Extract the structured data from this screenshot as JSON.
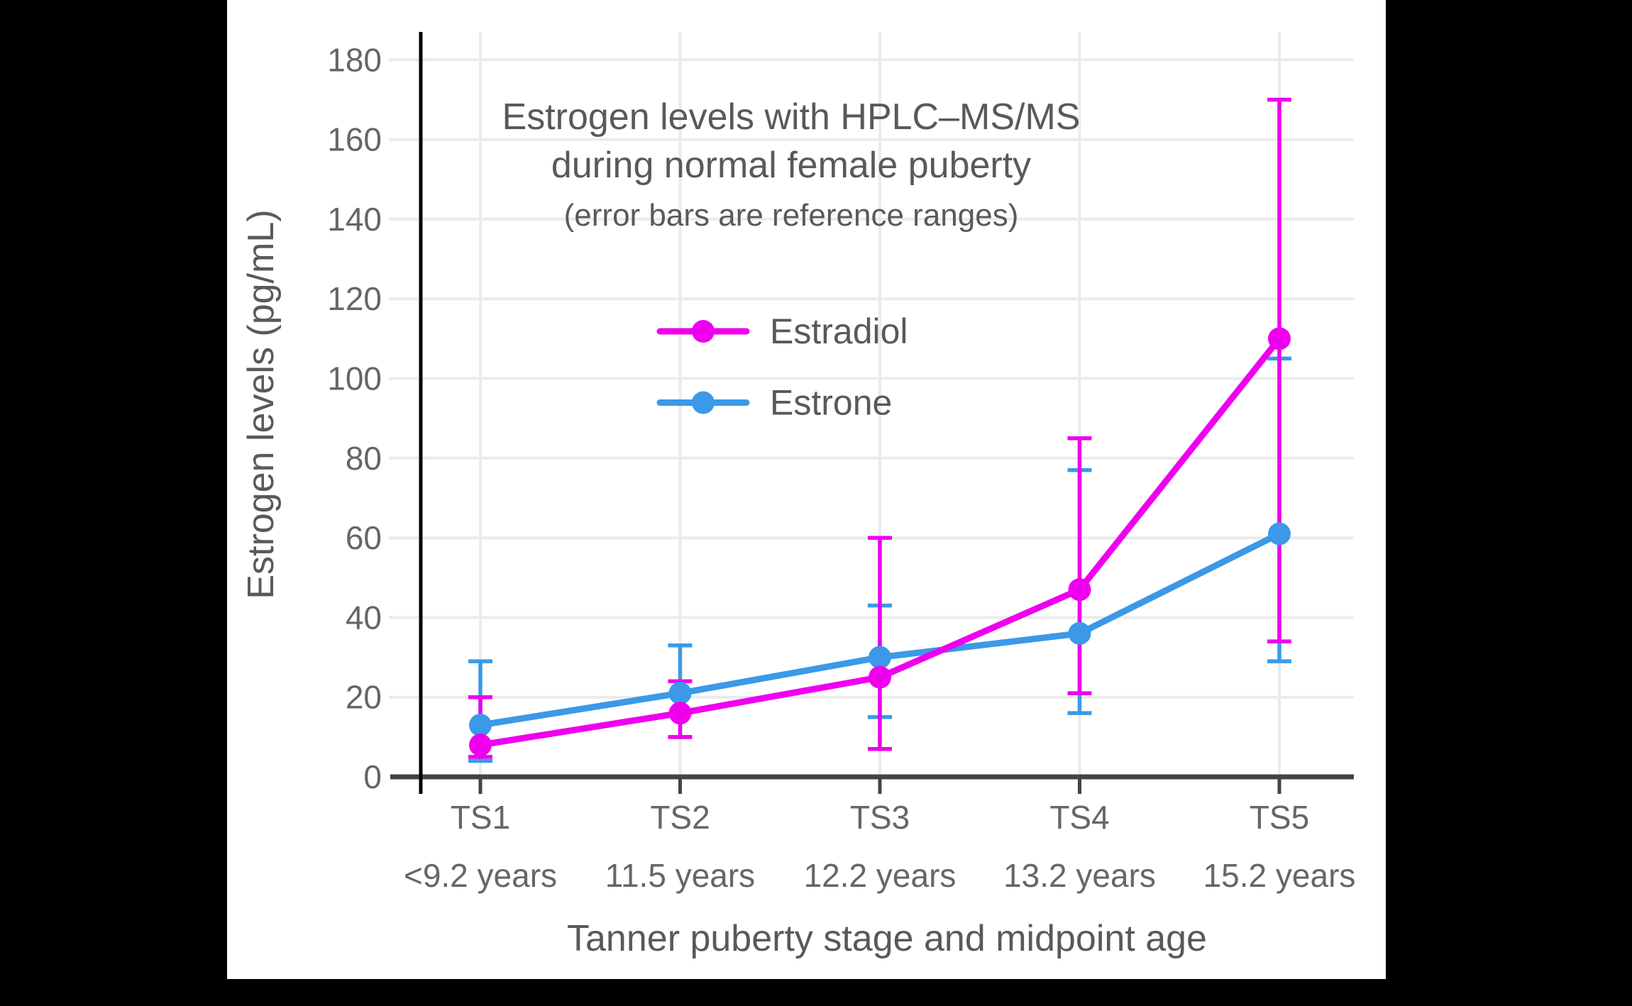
{
  "figure": {
    "background_color": "#000000",
    "panel_color": "#ffffff",
    "title_line1": "Estrogen levels with HPLC–MS/MS",
    "title_line2": "during normal female puberty",
    "subtitle": "(error bars are reference ranges)"
  },
  "chart_data": {
    "type": "line",
    "title": "Estrogen levels with HPLC–MS/MS during normal female puberty",
    "subtitle": "(error bars are reference ranges)",
    "xlabel": "Tanner puberty stage and midpoint age",
    "ylabel": "Estrogen levels (pg/mL)",
    "categories": [
      "TS1",
      "TS2",
      "TS3",
      "TS4",
      "TS5"
    ],
    "category_ages": [
      "<9.2 years",
      "11.5 years",
      "12.2 years",
      "13.2 years",
      "15.2 years"
    ],
    "yticks": [
      0,
      20,
      40,
      60,
      80,
      100,
      120,
      140,
      160,
      180
    ],
    "ylim": [
      0,
      187
    ],
    "grid": true,
    "legend_position": "inside upper-center",
    "series": [
      {
        "name": "Estradiol",
        "color": "#ee00ee",
        "values": [
          8,
          16,
          25,
          47,
          110
        ],
        "error_low": [
          5,
          10,
          7,
          21,
          34
        ],
        "error_high": [
          20,
          24,
          60,
          85,
          170
        ]
      },
      {
        "name": "Estrone",
        "color": "#3b99e8",
        "values": [
          13,
          21,
          30,
          36,
          61
        ],
        "error_low": [
          4,
          10,
          15,
          16,
          29
        ],
        "error_high": [
          29,
          33,
          43,
          77,
          105
        ]
      }
    ]
  }
}
